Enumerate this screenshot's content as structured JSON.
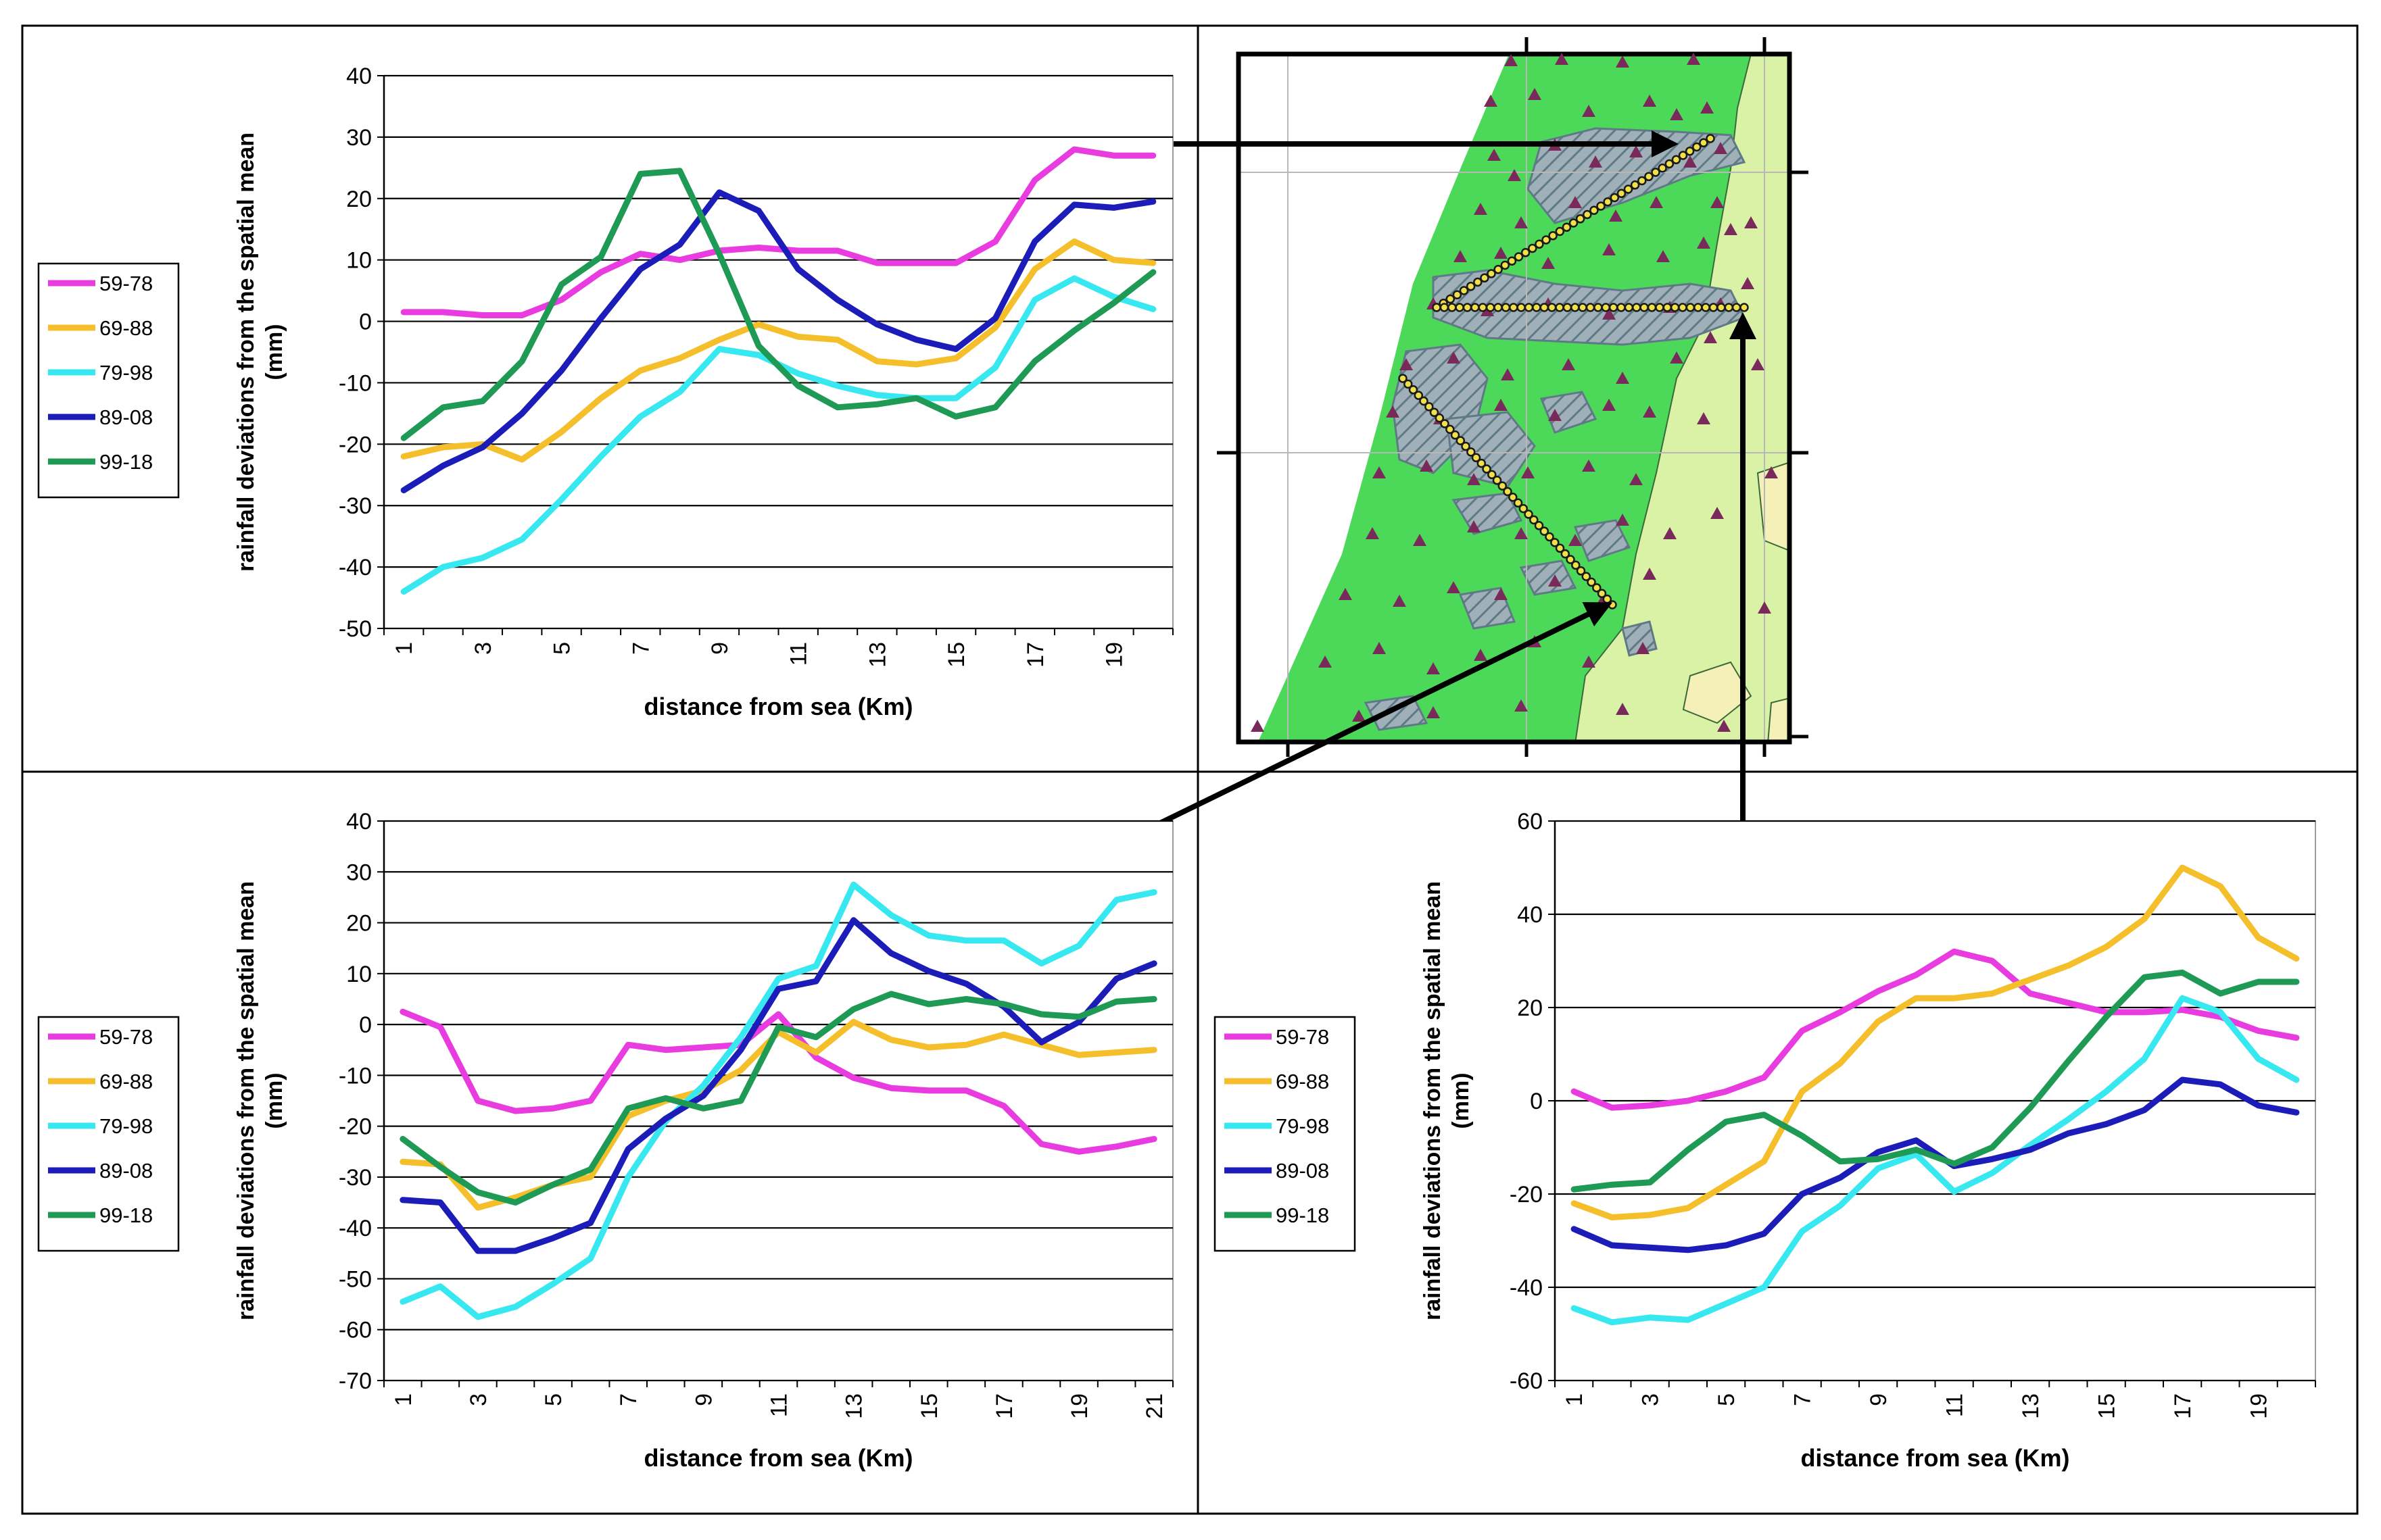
{
  "colors": {
    "59-78": "#e83ce0",
    "69-88": "#f4bf2a",
    "79-98": "#38e8f0",
    "89-08": "#1c1cb8",
    "99-18": "#1e9a55",
    "map_green": "#4cd95a",
    "map_light": "#d9f2a6",
    "map_yellow": "#f4f0b8",
    "station": "#7a2a5a"
  },
  "map": {
    "title": "",
    "legend_icon": "triangle-station-icon",
    "hatch_icon": "hatched-area-icon"
  },
  "chart_data": [
    {
      "type": "line",
      "id": "top-left",
      "title": "",
      "xlabel": "distance from sea (Km)",
      "ylabel": "rainfall deviations from the spatial mean (mm)",
      "ylabel_lines": [
        "rainfall deviations from the spatial mean",
        "(mm)"
      ],
      "x": [
        1,
        2,
        3,
        4,
        5,
        6,
        7,
        8,
        9,
        10,
        11,
        12,
        13,
        14,
        15,
        16,
        17,
        18,
        19,
        20
      ],
      "x_tick_labels": [
        "1",
        "3",
        "5",
        "7",
        "9",
        "11",
        "13",
        "15",
        "17",
        "19"
      ],
      "ylim": [
        -50,
        40
      ],
      "y_ticks": [
        -50,
        -40,
        -30,
        -20,
        -10,
        0,
        10,
        20,
        30,
        40
      ],
      "legend": [
        "59-78",
        "69-88",
        "79-98",
        "89-08",
        "99-18"
      ],
      "series": [
        {
          "name": "59-78",
          "values": [
            1.5,
            1.5,
            1,
            1,
            3.5,
            8,
            11,
            10,
            11.5,
            12,
            11.5,
            11.5,
            9.5,
            9.5,
            9.5,
            13,
            23,
            28,
            27,
            27
          ]
        },
        {
          "name": "69-88",
          "values": [
            -22,
            -20.5,
            -20,
            -22.5,
            -18,
            -12.5,
            -8,
            -6,
            -3,
            -0.5,
            -2.5,
            -3,
            -6.5,
            -7,
            -6,
            -1,
            8.5,
            13,
            10,
            9.5
          ]
        },
        {
          "name": "79-98",
          "values": [
            -44,
            -40,
            -38.5,
            -35.5,
            -29,
            -22,
            -15.5,
            -11.5,
            -4.5,
            -5.5,
            -8.5,
            -10.5,
            -12,
            -12.5,
            -12.5,
            -7.5,
            3.5,
            7,
            4,
            2
          ]
        },
        {
          "name": "89-08",
          "values": [
            -27.5,
            -23.5,
            -20.5,
            -15,
            -8,
            0.5,
            8.5,
            12.5,
            21,
            18,
            8.5,
            3.5,
            -0.5,
            -3,
            -4.5,
            0.5,
            13,
            19,
            18.5,
            19.5
          ]
        },
        {
          "name": "99-18",
          "values": [
            -19,
            -14,
            -13,
            -6.5,
            6,
            10.5,
            24,
            24.5,
            11,
            -4,
            -10.5,
            -14,
            -13.5,
            -12.5,
            -15.5,
            -14,
            -6.5,
            -1.5,
            3,
            8
          ]
        }
      ]
    },
    {
      "type": "line",
      "id": "bottom-left",
      "title": "",
      "xlabel": "distance from sea (Km)",
      "ylabel": "rainfall deviations from the spatial mean (mm)",
      "ylabel_lines": [
        "rainfall deviations from the spatial mean",
        "(mm)"
      ],
      "x": [
        1,
        2,
        3,
        4,
        5,
        6,
        7,
        8,
        9,
        10,
        11,
        12,
        13,
        14,
        15,
        16,
        17,
        18,
        19,
        20,
        21
      ],
      "x_tick_labels": [
        "1",
        "3",
        "5",
        "7",
        "9",
        "11",
        "13",
        "15",
        "17",
        "19",
        "21"
      ],
      "ylim": [
        -70,
        40
      ],
      "y_ticks": [
        -70,
        -60,
        -50,
        -40,
        -30,
        -20,
        -10,
        0,
        10,
        20,
        30,
        40
      ],
      "legend": [
        "59-78",
        "69-88",
        "79-98",
        "89-08",
        "99-18"
      ],
      "series": [
        {
          "name": "59-78",
          "values": [
            2.5,
            -0.5,
            -15,
            -17,
            -16.5,
            -15,
            -4,
            -5,
            -4.5,
            -4,
            2,
            -6.5,
            -10.5,
            -12.5,
            -13,
            -13,
            -16,
            -23.5,
            -25,
            -24,
            -22.5
          ]
        },
        {
          "name": "69-88",
          "values": [
            -27,
            -27.5,
            -36,
            -34,
            -31.5,
            -30,
            -18,
            -15,
            -13,
            -9,
            -1.5,
            -5.5,
            0.5,
            -3,
            -4.5,
            -4,
            -2,
            -4,
            -6,
            -5.5,
            -5
          ]
        },
        {
          "name": "79-98",
          "values": [
            -54.5,
            -51.5,
            -57.5,
            -55.5,
            -51,
            -46,
            -30,
            -19,
            -12,
            -2.5,
            9,
            11.5,
            27.5,
            21.5,
            17.5,
            16.5,
            16.5,
            12,
            15.5,
            24.5,
            26
          ]
        },
        {
          "name": "89-08",
          "values": [
            -34.5,
            -35,
            -44.5,
            -44.5,
            -42,
            -39,
            -24.5,
            -18.5,
            -14,
            -5,
            7,
            8.5,
            20.5,
            14,
            10.5,
            8,
            3.5,
            -3.5,
            0.5,
            9,
            12
          ]
        },
        {
          "name": "99-18",
          "values": [
            -22.5,
            -28,
            -33,
            -35,
            -31.5,
            -28.5,
            -16.5,
            -14.5,
            -16.5,
            -15,
            -0.5,
            -2.5,
            3,
            6,
            4,
            5,
            4,
            2,
            1.5,
            4.5,
            5
          ]
        }
      ]
    },
    {
      "type": "line",
      "id": "bottom-right",
      "title": "",
      "xlabel": "distance from sea (Km)",
      "ylabel": "rainfall deviations from the spatial mean (mm)",
      "ylabel_lines": [
        "rainfall deviations from the spatial mean",
        "(mm)"
      ],
      "x": [
        1,
        2,
        3,
        4,
        5,
        6,
        7,
        8,
        9,
        10,
        11,
        12,
        13,
        14,
        15,
        16,
        17,
        18,
        19,
        20
      ],
      "x_tick_labels": [
        "1",
        "3",
        "5",
        "7",
        "9",
        "11",
        "13",
        "15",
        "17",
        "19"
      ],
      "ylim": [
        -60,
        60
      ],
      "y_ticks": [
        -60,
        -40,
        -20,
        0,
        20,
        40,
        60
      ],
      "legend": [
        "59-78",
        "69-88",
        "79-98",
        "89-08",
        "99-18"
      ],
      "series": [
        {
          "name": "59-78",
          "values": [
            2,
            -1.5,
            -1,
            0,
            2,
            5,
            15,
            19,
            23.5,
            27,
            32,
            30,
            23,
            21,
            19,
            19,
            19.5,
            18,
            15,
            13.5
          ]
        },
        {
          "name": "69-88",
          "values": [
            -22,
            -25,
            -24.5,
            -23,
            -18,
            -13,
            2,
            8,
            17,
            22,
            22,
            23,
            26,
            29,
            33,
            39,
            50,
            46,
            35,
            30.5
          ]
        },
        {
          "name": "79-98",
          "values": [
            -44.5,
            -47.5,
            -46.5,
            -47,
            -43.5,
            -40,
            -28,
            -22.5,
            -14.5,
            -11.5,
            -19.5,
            -15.5,
            -9.5,
            -4,
            2,
            9,
            22,
            19,
            9,
            4.5
          ]
        },
        {
          "name": "89-08",
          "values": [
            -27.5,
            -31,
            -31.5,
            -32,
            -31,
            -28.5,
            -20,
            -16.5,
            -11,
            -8.5,
            -14,
            -12.5,
            -10.5,
            -7,
            -5,
            -2,
            4.5,
            3.5,
            -1,
            -2.5
          ]
        },
        {
          "name": "99-18",
          "values": [
            -19,
            -18,
            -17.5,
            -10.5,
            -4.5,
            -3,
            -7.5,
            -13,
            -12.5,
            -10.5,
            -13.5,
            -10,
            -1.5,
            8.5,
            18,
            26.5,
            27.5,
            23,
            25.5,
            25.5
          ]
        }
      ]
    }
  ]
}
